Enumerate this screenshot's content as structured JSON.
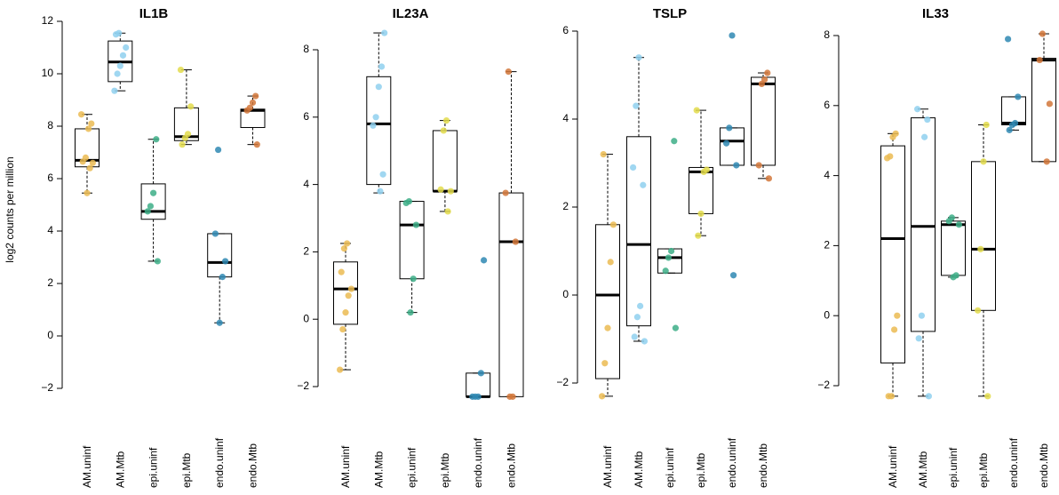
{
  "chart_data": [
    {
      "type": "box",
      "title": "IL1B",
      "ylabel": "log2 counts per million",
      "xlabel": "",
      "ylim": [
        -2,
        12
      ],
      "yticks": [
        -2,
        0,
        2,
        4,
        6,
        8,
        10,
        12
      ],
      "categories": [
        "AM.uninf",
        "AM.Mtb",
        "epi.uninf",
        "epi.Mtb",
        "endo.uninf",
        "endo.Mtb"
      ],
      "boxes": [
        {
          "q1": 6.45,
          "median": 6.7,
          "q3": 7.9,
          "whisker_low": 5.45,
          "whisker_high": 8.45,
          "outliers": []
        },
        {
          "q1": 9.7,
          "median": 10.45,
          "q3": 11.25,
          "whisker_low": 9.35,
          "whisker_high": 11.55,
          "outliers": []
        },
        {
          "q1": 4.45,
          "median": 4.75,
          "q3": 5.8,
          "whisker_low": 2.85,
          "whisker_high": 7.5,
          "outliers": []
        },
        {
          "q1": 7.45,
          "median": 7.6,
          "q3": 8.7,
          "whisker_low": 7.3,
          "whisker_high": 10.15,
          "outliers": []
        },
        {
          "q1": 2.25,
          "median": 2.8,
          "q3": 3.9,
          "whisker_low": 0.5,
          "whisker_high": 3.9,
          "outliers": [
            7.1
          ]
        },
        {
          "q1": 7.95,
          "median": 8.6,
          "q3": 8.65,
          "whisker_low": 7.3,
          "whisker_high": 9.15,
          "outliers": []
        }
      ],
      "points": [
        [
          8.45,
          8.1,
          7.9,
          6.8,
          6.65,
          6.6,
          6.4,
          5.45
        ],
        [
          11.55,
          11.5,
          11.0,
          10.7,
          10.3,
          10.0,
          9.35
        ],
        [
          7.5,
          5.45,
          4.95,
          4.75,
          2.85
        ],
        [
          10.15,
          8.75,
          7.7,
          7.55,
          7.3
        ],
        [
          7.1,
          3.9,
          2.85,
          2.25,
          0.5
        ],
        [
          9.15,
          8.9,
          8.7,
          8.6,
          7.3
        ]
      ]
    },
    {
      "type": "box",
      "title": "IL23A",
      "ylim": [
        -2,
        8
      ],
      "yticks": [
        -2,
        0,
        2,
        4,
        6,
        8
      ],
      "categories": [
        "AM.uninf",
        "AM.Mtb",
        "epi.uninf",
        "epi.Mtb",
        "endo.uninf",
        "endo.Mtb"
      ],
      "boxes": [
        {
          "q1": -0.15,
          "median": 0.9,
          "q3": 1.7,
          "whisker_low": -1.5,
          "whisker_high": 2.25,
          "outliers": []
        },
        {
          "q1": 4.0,
          "median": 5.8,
          "q3": 7.2,
          "whisker_low": 3.75,
          "whisker_high": 8.5,
          "outliers": []
        },
        {
          "q1": 1.2,
          "median": 2.8,
          "q3": 3.5,
          "whisker_low": 0.2,
          "whisker_high": 3.5,
          "outliers": []
        },
        {
          "q1": 3.8,
          "median": 3.8,
          "q3": 5.6,
          "whisker_low": 3.2,
          "whisker_high": 5.9,
          "outliers": []
        },
        {
          "q1": -2.3,
          "median": -2.3,
          "q3": -1.6,
          "whisker_low": -2.3,
          "whisker_high": -1.6,
          "outliers": [
            1.75
          ]
        },
        {
          "q1": -2.3,
          "median": 2.3,
          "q3": 3.75,
          "whisker_low": -2.3,
          "whisker_high": 7.35,
          "outliers": []
        }
      ],
      "points": [
        [
          2.25,
          2.1,
          1.4,
          0.9,
          0.7,
          0.2,
          -0.3,
          -1.5
        ],
        [
          8.5,
          7.5,
          6.9,
          6.0,
          5.75,
          4.3,
          3.8
        ],
        [
          3.5,
          3.45,
          2.8,
          1.2,
          0.2
        ],
        [
          5.9,
          5.6,
          3.85,
          3.8,
          3.2
        ],
        [
          1.75,
          -1.6,
          -2.3,
          -2.3,
          -2.3
        ],
        [
          7.35,
          3.75,
          2.3,
          -2.3,
          -2.3
        ]
      ]
    },
    {
      "type": "box",
      "title": "TSLP",
      "ylim": [
        -2,
        6
      ],
      "yticks": [
        -2,
        0,
        2,
        4,
        6
      ],
      "categories": [
        "AM.uninf",
        "AM.Mtb",
        "epi.uninf",
        "epi.Mtb",
        "endo.uninf",
        "endo.Mtb"
      ],
      "boxes": [
        {
          "q1": -1.9,
          "median": 0.0,
          "q3": 1.6,
          "whisker_low": -2.3,
          "whisker_high": 3.2,
          "outliers": []
        },
        {
          "q1": -0.7,
          "median": 1.15,
          "q3": 3.6,
          "whisker_low": -1.05,
          "whisker_high": 5.4,
          "outliers": []
        },
        {
          "q1": 0.5,
          "median": 0.85,
          "q3": 1.05,
          "whisker_low": 0.5,
          "whisker_high": 1.05,
          "outliers": [
            3.5,
            -0.75
          ]
        },
        {
          "q1": 1.85,
          "median": 2.8,
          "q3": 2.9,
          "whisker_low": 1.35,
          "whisker_high": 4.2,
          "outliers": []
        },
        {
          "q1": 2.95,
          "median": 3.5,
          "q3": 3.8,
          "whisker_low": 2.95,
          "whisker_high": 3.8,
          "outliers": [
            5.9,
            0.45
          ]
        },
        {
          "q1": 2.95,
          "median": 4.8,
          "q3": 4.95,
          "whisker_low": 2.65,
          "whisker_high": 5.05,
          "outliers": []
        }
      ],
      "points": [
        [
          3.2,
          1.6,
          0.75,
          -0.75,
          -1.55,
          -2.3
        ],
        [
          5.4,
          4.3,
          2.9,
          2.5,
          -0.25,
          -0.5,
          -0.95,
          -1.05
        ],
        [
          3.5,
          1.0,
          0.85,
          0.55,
          -0.75
        ],
        [
          4.2,
          2.85,
          2.8,
          1.85,
          1.35
        ],
        [
          5.9,
          3.8,
          3.45,
          2.95,
          0.45
        ],
        [
          5.05,
          4.9,
          4.8,
          2.95,
          2.65
        ]
      ]
    },
    {
      "type": "box",
      "title": "IL33",
      "ylim": [
        -2,
        8
      ],
      "yticks": [
        -2,
        0,
        2,
        4,
        6,
        8
      ],
      "categories": [
        "AM.uninf",
        "AM.Mtb",
        "epi.uninf",
        "epi.Mtb",
        "endo.uninf",
        "endo.Mtb"
      ],
      "boxes": [
        {
          "q1": -1.35,
          "median": 2.2,
          "q3": 4.85,
          "whisker_low": -2.3,
          "whisker_high": 5.2,
          "outliers": []
        },
        {
          "q1": -0.45,
          "median": 2.55,
          "q3": 5.65,
          "whisker_low": -2.3,
          "whisker_high": 5.9,
          "outliers": []
        },
        {
          "q1": 1.15,
          "median": 2.6,
          "q3": 2.7,
          "whisker_low": 1.1,
          "whisker_high": 2.8,
          "outliers": []
        },
        {
          "q1": 0.15,
          "median": 1.9,
          "q3": 4.4,
          "whisker_low": -2.3,
          "whisker_high": 5.45,
          "outliers": []
        },
        {
          "q1": 5.45,
          "median": 5.5,
          "q3": 6.25,
          "whisker_low": 5.3,
          "whisker_high": 6.25,
          "outliers": [
            7.9
          ]
        },
        {
          "q1": 4.4,
          "median": 7.3,
          "q3": 7.35,
          "whisker_low": 4.4,
          "whisker_high": 8.05,
          "outliers": []
        }
      ],
      "points": [
        [
          5.2,
          5.1,
          4.55,
          4.5,
          0.0,
          -0.4,
          -2.3,
          -2.3
        ],
        [
          5.9,
          5.6,
          5.1,
          0.0,
          -0.65,
          -2.3
        ],
        [
          2.8,
          2.7,
          2.6,
          1.15,
          1.1
        ],
        [
          5.45,
          4.4,
          1.9,
          0.15,
          -2.3
        ],
        [
          7.9,
          6.25,
          5.5,
          5.45,
          5.3
        ],
        [
          8.05,
          7.3,
          6.05,
          4.4
        ]
      ]
    }
  ],
  "group_colors": [
    "#EBBB52",
    "#8FD0EF",
    "#3DAE87",
    "#E3DC4C",
    "#2F88B3",
    "#D2773A"
  ]
}
